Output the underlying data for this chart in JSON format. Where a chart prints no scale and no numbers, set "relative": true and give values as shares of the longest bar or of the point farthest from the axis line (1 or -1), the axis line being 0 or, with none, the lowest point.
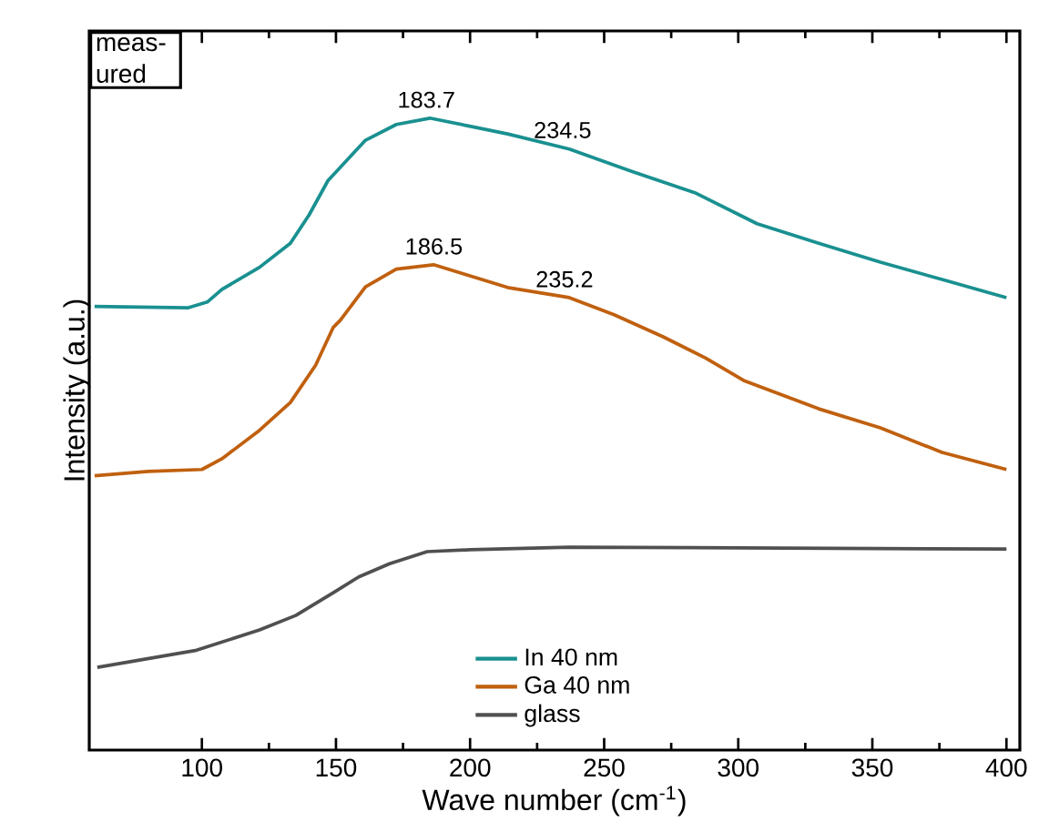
{
  "chart_data": {
    "type": "line",
    "relative": true,
    "xlabel": "Wave number (cm$^{-1}$)",
    "ylabel": "Intensity (a.u.)",
    "xlim": [
      58,
      405
    ],
    "xticks": [
      100,
      150,
      200,
      250,
      300,
      350,
      400
    ],
    "tick_labels": "x",
    "legend": "bottom",
    "marker": "none",
    "series": [
      {
        "name": "In 40 nm",
        "color": "#1a9090",
        "x": [
          60,
          95,
          102,
          107.5,
          121.5,
          133,
          140,
          147,
          161,
          172.5,
          185,
          199,
          214,
          237,
          260,
          283.8,
          307,
          330,
          353,
          376.6,
          400
        ],
        "values": [
          0.702,
          0.7,
          0.709,
          0.729,
          0.764,
          0.802,
          0.847,
          0.901,
          0.965,
          0.99,
          1.0,
          0.988,
          0.975,
          0.951,
          0.916,
          0.882,
          0.833,
          0.802,
          0.772,
          0.744,
          0.716
        ]
      },
      {
        "name": "Ga 40 nm",
        "color": "#c0600f",
        "x": [
          60,
          80,
          100,
          107.5,
          121.5,
          133,
          142.4,
          149,
          151.6,
          161,
          172.5,
          186.4,
          198,
          214,
          237,
          253.7,
          272,
          288,
          302,
          330,
          353,
          376,
          400
        ],
        "values": [
          0.434,
          0.441,
          0.444,
          0.461,
          0.506,
          0.55,
          0.609,
          0.669,
          0.68,
          0.733,
          0.761,
          0.768,
          0.753,
          0.732,
          0.716,
          0.689,
          0.654,
          0.62,
          0.585,
          0.54,
          0.51,
          0.471,
          0.444
        ]
      },
      {
        "name": "glass",
        "color": "#505050",
        "x": [
          61,
          98,
          121.5,
          135,
          149,
          158.5,
          170,
          184,
          200,
          237,
          300,
          400
        ],
        "values": [
          0.131,
          0.158,
          0.19,
          0.213,
          0.249,
          0.274,
          0.295,
          0.314,
          0.317,
          0.321,
          0.32,
          0.318
        ]
      }
    ],
    "annotations": [
      "meas-ured",
      {
        "text": "183.7",
        "x": 183.7,
        "y": 1.0
      },
      {
        "text": "234.5",
        "x": 234.5,
        "y": 0.952
      },
      {
        "text": "186.5",
        "x": 186.5,
        "y": 0.768
      },
      {
        "text": "235.2",
        "x": 235.2,
        "y": 0.716
      }
    ]
  }
}
